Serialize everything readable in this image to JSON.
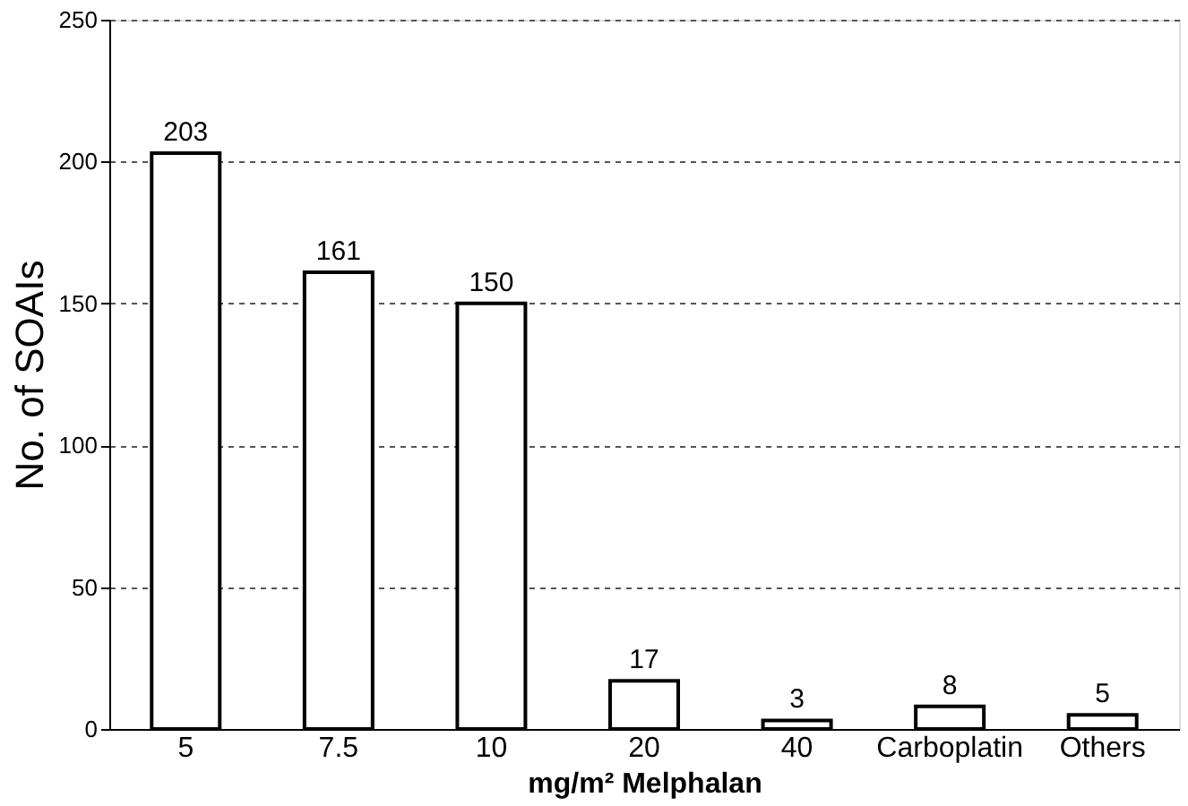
{
  "chart_data": {
    "type": "bar",
    "categories": [
      "5",
      "7.5",
      "10",
      "20",
      "40",
      "Carboplatin",
      "Others"
    ],
    "values": [
      203,
      161,
      150,
      17,
      3,
      8,
      5
    ],
    "color": "#ffffff",
    "xlabel": "mg/m² Melphalan",
    "ylabel": "No. of SOAIs",
    "ylim": [
      0,
      250
    ],
    "yticks": [
      0,
      50,
      100,
      150,
      200,
      250
    ],
    "grid": "y",
    "data_labels": true
  }
}
